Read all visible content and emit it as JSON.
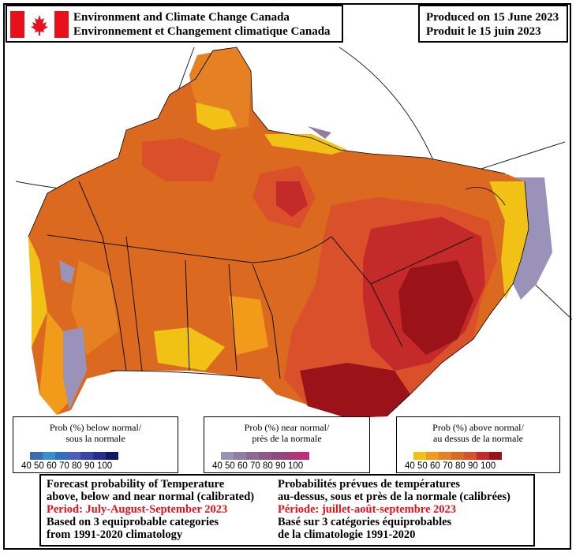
{
  "header": {
    "agency_en": "Environment and Climate Change Canada",
    "agency_fr": "Environnement et Changement climatique Canada",
    "produced_en": "Produced on 15 June 2023",
    "produced_fr": "Produit le 15 juin 2023"
  },
  "legends": {
    "below": {
      "title_en": "Prob (%) below normal/",
      "title_fr": "sous la normale",
      "ticks": [
        "40",
        "50",
        "60",
        "70",
        "80",
        "90",
        "100"
      ],
      "colors": [
        "#3b6cb8",
        "#3a8ed0",
        "#2f6fc1",
        "#4b5fc0",
        "#3945a8",
        "#262f8f",
        "#12176a"
      ]
    },
    "near": {
      "title_en": "Prob (%) near normal/",
      "title_fr": "près de la normale",
      "ticks": [
        "40",
        "50",
        "60",
        "70",
        "80",
        "90",
        "100"
      ],
      "colors": [
        "#9a92b8",
        "#8e7ea4",
        "#8a6b95",
        "#8b5a87",
        "#8f4a7d",
        "#a23d7a",
        "#c22c78"
      ]
    },
    "above": {
      "title_en": "Prob (%) above normal/",
      "title_fr": "au dessus de la normale",
      "ticks": [
        "40",
        "50",
        "60",
        "70",
        "80",
        "90",
        "100"
      ],
      "colors": [
        "#f2c116",
        "#f29a1a",
        "#e58023",
        "#db6a20",
        "#d9502a",
        "#c42a29",
        "#9b1319"
      ]
    }
  },
  "info": {
    "en_line1": "Forecast probability of Temperature",
    "en_line2": "above, below and near normal (calibrated)",
    "en_period": "Period: July-August-September 2023",
    "en_line4": "Based on 3 equiprobable categories",
    "en_line5": "from 1991-2020 climatology",
    "fr_line1": "Probabilités prévues de températures",
    "fr_line2": "au-dessus, sous et près de la normale (calibrées)",
    "fr_period": "Période: juillet-août-septembre 2023",
    "fr_line4": "Basé sur 3 catégories équiprobables",
    "fr_line5": "de la climatologie 1991-2020"
  },
  "flag_colors": {
    "red": "#e8101a",
    "white": "#ffffff"
  }
}
